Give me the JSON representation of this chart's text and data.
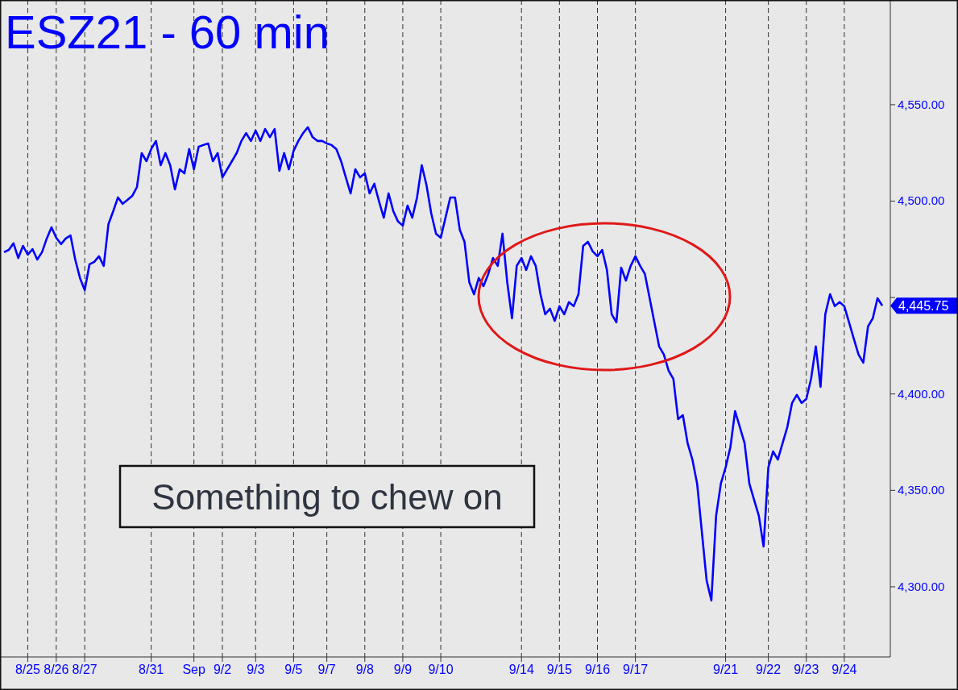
{
  "chart_data": {
    "type": "line",
    "title": "ESZ21 - 60 min",
    "grid": "x",
    "categories": [
      null,
      null,
      null,
      null,
      null,
      "8/25",
      null,
      null,
      null,
      null,
      null,
      "8/26",
      null,
      null,
      null,
      null,
      null,
      "8/27",
      null,
      null,
      null,
      null,
      null,
      null,
      null,
      null,
      null,
      null,
      null,
      null,
      null,
      "8/31",
      null,
      null,
      null,
      null,
      null,
      null,
      null,
      null,
      "Sep",
      null,
      null,
      null,
      null,
      null,
      "9/2",
      null,
      null,
      null,
      null,
      null,
      null,
      "9/3",
      null,
      null,
      null,
      null,
      null,
      null,
      null,
      "9/5",
      null,
      null,
      null,
      null,
      null,
      null,
      "9/7",
      null,
      null,
      null,
      null,
      null,
      null,
      null,
      "9/8",
      null,
      null,
      null,
      null,
      null,
      null,
      null,
      "9/9",
      null,
      null,
      null,
      null,
      null,
      null,
      null,
      "9/10",
      null,
      null,
      null,
      null,
      null,
      null,
      null,
      null,
      null,
      null,
      null,
      null,
      null,
      null,
      null,
      null,
      "9/14",
      null,
      null,
      null,
      null,
      null,
      null,
      null,
      "9/15",
      null,
      null,
      null,
      null,
      null,
      null,
      null,
      "9/16",
      null,
      null,
      null,
      null,
      null,
      null,
      null,
      "9/17",
      null,
      null,
      null,
      null,
      null,
      null,
      null,
      null,
      null,
      null,
      null,
      null,
      null,
      null,
      null,
      null,
      null,
      null,
      "9/21",
      null,
      null,
      null,
      null,
      null,
      null,
      null,
      null,
      "9/22",
      null,
      null,
      null,
      null,
      null,
      null,
      null,
      "9/23",
      null,
      null,
      null,
      null,
      null,
      null,
      null,
      "9/24",
      null,
      null,
      null,
      null,
      null,
      null,
      null,
      null
    ],
    "ylim": [
      4263.6,
      4604.3
    ],
    "yticks": [
      {
        "value": 4300,
        "label": "4,300.00"
      },
      {
        "value": 4350,
        "label": "4,350.00"
      },
      {
        "value": 4400,
        "label": "4,400.00"
      },
      {
        "value": 4450,
        "label": null
      },
      {
        "value": 4500,
        "label": "4,500.00"
      },
      {
        "value": 4550,
        "label": "4,550.00"
      }
    ],
    "annotations": [
      "Something to chew on",
      "4,445.75"
    ],
    "series": [
      {
        "color": "#0000ff",
        "values": [
          4473.5,
          4474.7,
          4478.1,
          4470.5,
          4476.8,
          4472.2,
          4475.1,
          4469.7,
          4473.5,
          4480.6,
          4486.4,
          4481.0,
          4477.7,
          4480.6,
          4482.2,
          4469.7,
          4460.1,
          4453.8,
          4467.2,
          4468.5,
          4471.4,
          4466.4,
          4488.1,
          4494.8,
          4501.9,
          4498.6,
          4500.6,
          4502.7,
          4507.3,
          4524.9,
          4520.7,
          4527.0,
          4531.2,
          4518.6,
          4524.9,
          4518.6,
          4506.1,
          4516.5,
          4514.4,
          4527.0,
          4516.5,
          4528.2,
          4529.1,
          4529.9,
          4520.7,
          4524.9,
          4512.3,
          4516.5,
          4520.7,
          4524.9,
          4531.2,
          4535.3,
          4531.2,
          4536.6,
          4531.2,
          4537.4,
          4533.2,
          4537.4,
          4515.7,
          4524.9,
          4516.5,
          4526.1,
          4531.2,
          4535.3,
          4538.3,
          4533.2,
          4531.2,
          4531.2,
          4529.9,
          4529.1,
          4527.0,
          4520.7,
          4512.3,
          4504.0,
          4516.5,
          4512.3,
          4514.4,
          4504.0,
          4509.0,
          4499.8,
          4491.4,
          4504.0,
          4494.8,
          4489.4,
          4487.3,
          4497.7,
          4491.4,
          4501.9,
          4518.6,
          4508.2,
          4493.5,
          4483.1,
          4481.0,
          4491.4,
          4501.9,
          4501.9,
          4485.2,
          4478.9,
          4458.0,
          4451.7,
          4460.1,
          4455.9,
          4462.2,
          4470.5,
          4466.4,
          4483.1,
          4458.0,
          4439.2,
          4466.4,
          4470.5,
          4464.3,
          4471.4,
          4466.4,
          4451.7,
          4441.3,
          4444.2,
          4437.9,
          4445.5,
          4441.3,
          4447.6,
          4445.5,
          4451.7,
          4476.8,
          4478.9,
          4473.9,
          4471.4,
          4474.7,
          4464.3,
          4441.3,
          4437.1,
          4465.5,
          4458.8,
          4466.4,
          4471.4,
          4466.4,
          4462.2,
          4449.6,
          4437.1,
          4424.6,
          4420.4,
          4412.0,
          4407.8,
          4386.9,
          4389.0,
          4374.4,
          4366.0,
          4353.5,
          4328.4,
          4303.3,
          4292.9,
          4336.8,
          4353.5,
          4361.9,
          4372.3,
          4391.1,
          4382.8,
          4374.4,
          4353.5,
          4345.1,
          4336.8,
          4320.9,
          4361.9,
          4370.2,
          4366.0,
          4374.4,
          4382.8,
          4395.3,
          4399.5,
          4395.3,
          4397.4,
          4407.8,
          4424.6,
          4403.7,
          4441.3,
          4451.7,
          4445.5,
          4447.6,
          4445.5,
          4437.1,
          4428.7,
          4420.4,
          4416.2,
          4435.0,
          4439.2,
          4449.6,
          4445.75
        ]
      }
    ]
  }
}
